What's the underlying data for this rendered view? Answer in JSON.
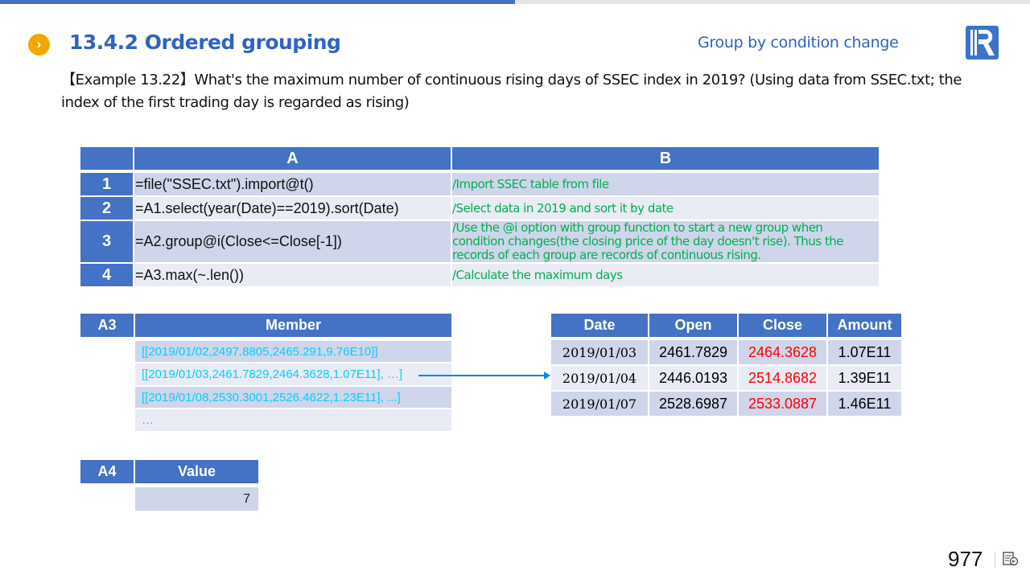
{
  "header": {
    "title": "13.4.2 Ordered grouping",
    "subtitle": "Group by condition change",
    "bullet_icon": "chevron-right-icon"
  },
  "example": {
    "text": "【Example 13.22】What's the maximum number of continuous rising days of SSEC index in 2019? (Using data from SSEC.txt; the index of the first trading day is regarded as rising)"
  },
  "code_grid": {
    "columns": [
      "A",
      "B"
    ],
    "rows": [
      {
        "num": "1",
        "code": "=file(\"SSEC.txt\").import@t()",
        "comment": "/Import SSEC table from file"
      },
      {
        "num": "2",
        "code": "=A1.select(year(Date)==2019).sort(Date)",
        "comment": "/Select data in 2019 and sort it by date"
      },
      {
        "num": "3",
        "code": "=A2.group@i(Close<=Close[-1])",
        "comment": "/Use the @i option with group function to start a new group when condition changes(the closing price of the day doesn't rise). Thus the records of each group are records of continuous rising."
      },
      {
        "num": "4",
        "code": "=A3.max(~.len())",
        "comment": "/Calculate the maximum days"
      }
    ]
  },
  "a3_table": {
    "label": "A3",
    "header": "Member",
    "rows": [
      "[[2019/01/02,2497.8805,2465.291,9.76E10]]",
      "[[2019/01/03,2461.7829,2464.3628,1.07E11], …]",
      "[[2019/01/08,2530.3001,2526.4622,1.23E11], ...]",
      "…"
    ]
  },
  "detail_table": {
    "headers": [
      "Date",
      "Open",
      "Close",
      "Amount"
    ],
    "rows": [
      [
        "2019/01/03",
        "2461.7829",
        "2464.3628",
        "1.07E11"
      ],
      [
        "2019/01/04",
        "2446.0193",
        "2514.8682",
        "1.39E11"
      ],
      [
        "2019/01/07",
        "2528.6987",
        "2533.0887",
        "1.46E11"
      ]
    ]
  },
  "a4_table": {
    "label": "A4",
    "header": "Value",
    "value": "7"
  },
  "footer": {
    "page_number": "977"
  },
  "colors": {
    "accent": "#4472c4",
    "title": "#2e63c0",
    "comment": "#00b050",
    "member": "#00d0ff",
    "close": "#ff0000"
  }
}
